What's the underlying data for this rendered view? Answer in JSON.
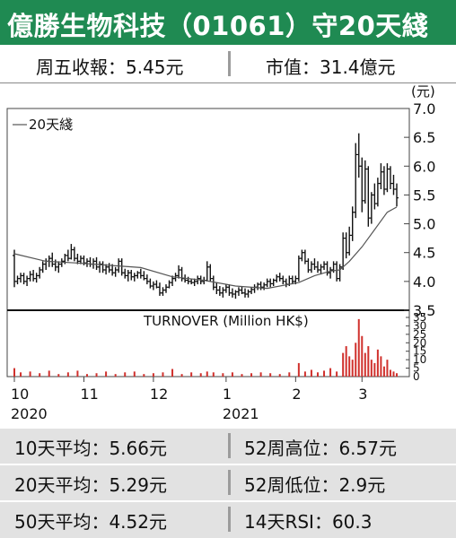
{
  "header": {
    "title": "億勝生物科技（01061）守20天綫"
  },
  "summary": {
    "close": "周五收報：5.45元",
    "market_cap": "市值：31.4億元"
  },
  "stats": [
    {
      "left": "10天平均：5.66元",
      "right": "52周高位：6.57元"
    },
    {
      "left": "20天平均：5.29元",
      "right": "52周低位：2.9元"
    },
    {
      "left": "50天平均：4.52元",
      "right": "14天RSI：60.3"
    }
  ],
  "chart_data": {
    "type": "candlestick",
    "price_unit": "(元)",
    "legend": "20天綫",
    "legend_placement": "top-left",
    "price_ylim": [
      3.5,
      7.0
    ],
    "price_ticks": [
      "7.0",
      "6.5",
      "6.0",
      "5.5",
      "5.0",
      "4.5",
      "4.0",
      "3.5"
    ],
    "turnover_label": "TURNOVER (Million HK$)",
    "turnover_ylim": [
      0,
      35
    ],
    "turnover_ticks": [
      "35",
      "30",
      "25",
      "20",
      "15",
      "10",
      "5",
      "0"
    ],
    "x_ticks": [
      {
        "label": "10",
        "year": "2020",
        "day": 0
      },
      {
        "label": "11",
        "year": "",
        "day": 22
      },
      {
        "label": "12",
        "year": "",
        "day": 44
      },
      {
        "label": "1",
        "year": "2021",
        "day": 67
      },
      {
        "label": "2",
        "year": "",
        "day": 89
      },
      {
        "label": "3",
        "year": "",
        "day": 110
      }
    ],
    "ohlc": [
      [
        0,
        4.45,
        4.55,
        3.9,
        4.0
      ],
      [
        1,
        4.0,
        4.1,
        3.95,
        4.05
      ],
      [
        2,
        4.05,
        4.15,
        3.98,
        4.1
      ],
      [
        3,
        4.1,
        4.15,
        3.95,
        4.0
      ],
      [
        4,
        4.0,
        4.1,
        3.92,
        4.05
      ],
      [
        5,
        4.05,
        4.18,
        4.0,
        4.12
      ],
      [
        6,
        4.12,
        4.2,
        4.0,
        4.05
      ],
      [
        7,
        4.05,
        4.15,
        3.98,
        4.1
      ],
      [
        8,
        4.1,
        4.25,
        4.05,
        4.2
      ],
      [
        9,
        4.2,
        4.35,
        4.15,
        4.3
      ],
      [
        10,
        4.3,
        4.4,
        4.2,
        4.35
      ],
      [
        11,
        4.35,
        4.45,
        4.25,
        4.4
      ],
      [
        12,
        4.4,
        4.5,
        4.25,
        4.3
      ],
      [
        13,
        4.3,
        4.38,
        4.18,
        4.25
      ],
      [
        14,
        4.25,
        4.35,
        4.15,
        4.3
      ],
      [
        15,
        4.3,
        4.4,
        4.25,
        4.35
      ],
      [
        16,
        4.35,
        4.48,
        4.3,
        4.45
      ],
      [
        17,
        4.45,
        4.55,
        4.35,
        4.4
      ],
      [
        18,
        4.4,
        4.65,
        4.38,
        4.55
      ],
      [
        19,
        4.55,
        4.6,
        4.35,
        4.4
      ],
      [
        20,
        4.4,
        4.48,
        4.3,
        4.35
      ],
      [
        21,
        4.35,
        4.45,
        4.3,
        4.4
      ],
      [
        22,
        4.4,
        4.45,
        4.28,
        4.32
      ],
      [
        23,
        4.32,
        4.4,
        4.25,
        4.35
      ],
      [
        24,
        4.35,
        4.42,
        4.25,
        4.3
      ],
      [
        25,
        4.3,
        4.4,
        4.22,
        4.35
      ],
      [
        26,
        4.35,
        4.42,
        4.2,
        4.25
      ],
      [
        27,
        4.25,
        4.35,
        4.15,
        4.3
      ],
      [
        28,
        4.3,
        4.35,
        4.15,
        4.2
      ],
      [
        29,
        4.2,
        4.3,
        4.12,
        4.25
      ],
      [
        30,
        4.25,
        4.32,
        4.15,
        4.2
      ],
      [
        31,
        4.2,
        4.3,
        4.1,
        4.15
      ],
      [
        32,
        4.15,
        4.25,
        4.08,
        4.2
      ],
      [
        33,
        4.2,
        4.4,
        4.15,
        4.35
      ],
      [
        34,
        4.35,
        4.4,
        4.1,
        4.15
      ],
      [
        35,
        4.15,
        4.22,
        4.05,
        4.1
      ],
      [
        36,
        4.1,
        4.2,
        4.0,
        4.15
      ],
      [
        37,
        4.15,
        4.2,
        4.02,
        4.08
      ],
      [
        38,
        4.08,
        4.15,
        4.0,
        4.1
      ],
      [
        39,
        4.1,
        4.18,
        4.05,
        4.15
      ],
      [
        40,
        4.15,
        4.22,
        4.05,
        4.1
      ],
      [
        41,
        4.1,
        4.18,
        4.02,
        4.05
      ],
      [
        42,
        4.05,
        4.12,
        3.95,
        4.0
      ],
      [
        43,
        4.0,
        4.05,
        3.88,
        3.92
      ],
      [
        44,
        3.92,
        4.0,
        3.85,
        3.95
      ],
      [
        45,
        3.95,
        4.02,
        3.88,
        3.9
      ],
      [
        46,
        3.9,
        3.98,
        3.75,
        3.8
      ],
      [
        47,
        3.8,
        3.9,
        3.75,
        3.85
      ],
      [
        48,
        3.85,
        3.95,
        3.8,
        3.9
      ],
      [
        49,
        3.9,
        4.02,
        3.88,
        3.98
      ],
      [
        50,
        3.98,
        4.1,
        3.92,
        4.05
      ],
      [
        51,
        4.05,
        4.15,
        4.0,
        4.1
      ],
      [
        52,
        4.1,
        4.28,
        4.05,
        4.2
      ],
      [
        53,
        4.2,
        4.25,
        4.0,
        4.05
      ],
      [
        54,
        4.05,
        4.12,
        3.98,
        4.02
      ],
      [
        55,
        4.02,
        4.08,
        3.95,
        4.0
      ],
      [
        56,
        4.0,
        4.05,
        3.95,
        3.98
      ],
      [
        57,
        3.98,
        4.05,
        3.92,
        4.0
      ],
      [
        58,
        4.0,
        4.1,
        3.95,
        4.05
      ],
      [
        59,
        4.05,
        4.1,
        3.95,
        4.0
      ],
      [
        60,
        4.0,
        4.08,
        3.95,
        4.02
      ],
      [
        61,
        4.02,
        4.35,
        4.0,
        4.25
      ],
      [
        62,
        4.25,
        4.3,
        4.0,
        4.05
      ],
      [
        63,
        4.05,
        4.1,
        3.85,
        3.9
      ],
      [
        64,
        3.9,
        3.98,
        3.78,
        3.85
      ],
      [
        65,
        3.85,
        3.92,
        3.75,
        3.8
      ],
      [
        66,
        3.8,
        3.9,
        3.72,
        3.85
      ],
      [
        67,
        3.85,
        3.95,
        3.8,
        3.9
      ],
      [
        68,
        3.9,
        3.95,
        3.75,
        3.8
      ],
      [
        69,
        3.8,
        3.88,
        3.72,
        3.78
      ],
      [
        70,
        3.78,
        3.85,
        3.7,
        3.82
      ],
      [
        71,
        3.82,
        3.9,
        3.75,
        3.85
      ],
      [
        72,
        3.85,
        3.92,
        3.78,
        3.8
      ],
      [
        73,
        3.8,
        3.88,
        3.72,
        3.78
      ],
      [
        74,
        3.78,
        3.86,
        3.72,
        3.82
      ],
      [
        75,
        3.82,
        3.9,
        3.78,
        3.86
      ],
      [
        76,
        3.86,
        3.95,
        3.8,
        3.9
      ],
      [
        77,
        3.9,
        3.98,
        3.85,
        3.95
      ],
      [
        78,
        3.95,
        4.0,
        3.85,
        3.9
      ],
      [
        79,
        3.9,
        3.98,
        3.85,
        3.94
      ],
      [
        80,
        3.94,
        4.05,
        3.9,
        4.0
      ],
      [
        81,
        4.0,
        4.05,
        3.9,
        3.96
      ],
      [
        82,
        3.96,
        4.05,
        3.92,
        4.02
      ],
      [
        83,
        4.02,
        4.12,
        3.98,
        4.08
      ],
      [
        84,
        4.08,
        4.15,
        4.0,
        4.05
      ],
      [
        85,
        4.05,
        4.1,
        3.95,
        4.0
      ],
      [
        86,
        4.0,
        4.05,
        3.9,
        3.95
      ],
      [
        87,
        3.95,
        4.1,
        3.92,
        4.05
      ],
      [
        88,
        4.05,
        4.1,
        3.95,
        4.0
      ],
      [
        89,
        4.0,
        4.1,
        3.95,
        4.05
      ],
      [
        90,
        4.05,
        4.45,
        4.0,
        4.4
      ],
      [
        91,
        4.4,
        4.55,
        4.35,
        4.5
      ],
      [
        92,
        4.5,
        4.55,
        4.3,
        4.35
      ],
      [
        93,
        4.35,
        4.4,
        4.15,
        4.2
      ],
      [
        94,
        4.2,
        4.35,
        4.15,
        4.3
      ],
      [
        95,
        4.3,
        4.4,
        4.2,
        4.25
      ],
      [
        96,
        4.25,
        4.35,
        4.15,
        4.2
      ],
      [
        97,
        4.2,
        4.3,
        4.12,
        4.25
      ],
      [
        98,
        4.25,
        4.35,
        4.2,
        4.3
      ],
      [
        99,
        4.3,
        4.35,
        4.1,
        4.15
      ],
      [
        100,
        4.15,
        4.25,
        4.05,
        4.2
      ],
      [
        101,
        4.2,
        4.35,
        4.15,
        4.3
      ],
      [
        102,
        4.3,
        4.35,
        4.0,
        4.05
      ],
      [
        103,
        4.05,
        4.3,
        4.0,
        4.25
      ],
      [
        104,
        4.25,
        4.85,
        4.2,
        4.75
      ],
      [
        105,
        4.75,
        4.85,
        4.4,
        4.5
      ],
      [
        106,
        4.5,
        4.95,
        4.45,
        4.8
      ],
      [
        107,
        4.8,
        5.3,
        4.7,
        5.2
      ],
      [
        108,
        5.2,
        6.4,
        5.1,
        6.2
      ],
      [
        109,
        6.2,
        6.57,
        5.8,
        6.0
      ],
      [
        110,
        6.0,
        6.15,
        5.2,
        5.4
      ],
      [
        111,
        5.4,
        6.1,
        5.35,
        5.95
      ],
      [
        112,
        5.95,
        6.0,
        4.95,
        5.1
      ],
      [
        113,
        5.1,
        5.55,
        5.0,
        5.5
      ],
      [
        114,
        5.5,
        5.7,
        5.25,
        5.35
      ],
      [
        115,
        5.35,
        5.8,
        5.3,
        5.7
      ],
      [
        116,
        5.7,
        6.05,
        5.6,
        5.9
      ],
      [
        117,
        5.9,
        6.0,
        5.5,
        5.6
      ],
      [
        118,
        5.6,
        6.05,
        5.55,
        5.95
      ],
      [
        119,
        5.95,
        6.0,
        5.6,
        5.7
      ],
      [
        120,
        5.7,
        5.85,
        5.5,
        5.6
      ],
      [
        121,
        5.6,
        5.7,
        5.3,
        5.45
      ]
    ],
    "ma20": [
      [
        0,
        4.48
      ],
      [
        10,
        4.35
      ],
      [
        20,
        4.32
      ],
      [
        30,
        4.28
      ],
      [
        40,
        4.24
      ],
      [
        50,
        4.08
      ],
      [
        60,
        4.02
      ],
      [
        70,
        3.92
      ],
      [
        80,
        3.88
      ],
      [
        90,
        3.98
      ],
      [
        95,
        4.1
      ],
      [
        100,
        4.18
      ],
      [
        103,
        4.2
      ],
      [
        106,
        4.35
      ],
      [
        110,
        4.6
      ],
      [
        114,
        4.9
      ],
      [
        118,
        5.2
      ],
      [
        121,
        5.29
      ]
    ],
    "turnover": [
      [
        0,
        5.0
      ],
      [
        2,
        2.5
      ],
      [
        5,
        3.0
      ],
      [
        8,
        2.0
      ],
      [
        11,
        3.5
      ],
      [
        14,
        1.5
      ],
      [
        17,
        2.5
      ],
      [
        20,
        3.5
      ],
      [
        23,
        1.5
      ],
      [
        26,
        2.0
      ],
      [
        29,
        3.0
      ],
      [
        32,
        1.5
      ],
      [
        35,
        2.5
      ],
      [
        38,
        3.0
      ],
      [
        41,
        1.5
      ],
      [
        44,
        2.0
      ],
      [
        47,
        2.5
      ],
      [
        50,
        4.5
      ],
      [
        53,
        1.5
      ],
      [
        56,
        2.5
      ],
      [
        59,
        2.0
      ],
      [
        61,
        3.0
      ],
      [
        63,
        2.5
      ],
      [
        66,
        2.0
      ],
      [
        69,
        2.5
      ],
      [
        72,
        1.5
      ],
      [
        75,
        2.0
      ],
      [
        78,
        2.5
      ],
      [
        81,
        2.0
      ],
      [
        84,
        1.5
      ],
      [
        87,
        2.5
      ],
      [
        90,
        8.0
      ],
      [
        92,
        3.0
      ],
      [
        94,
        4.0
      ],
      [
        96,
        2.5
      ],
      [
        98,
        3.5
      ],
      [
        100,
        5.0
      ],
      [
        102,
        3.0
      ],
      [
        104,
        14.0
      ],
      [
        105,
        18.0
      ],
      [
        106,
        12.0
      ],
      [
        107,
        10.0
      ],
      [
        108,
        20.0
      ],
      [
        109,
        34.0
      ],
      [
        110,
        24.0
      ],
      [
        111,
        14.0
      ],
      [
        112,
        18.0
      ],
      [
        113,
        10.0
      ],
      [
        114,
        8.0
      ],
      [
        115,
        16.0
      ],
      [
        116,
        12.0
      ],
      [
        117,
        6.0
      ],
      [
        118,
        10.0
      ],
      [
        119,
        4.0
      ],
      [
        120,
        3.0
      ],
      [
        121,
        2.0
      ]
    ]
  }
}
